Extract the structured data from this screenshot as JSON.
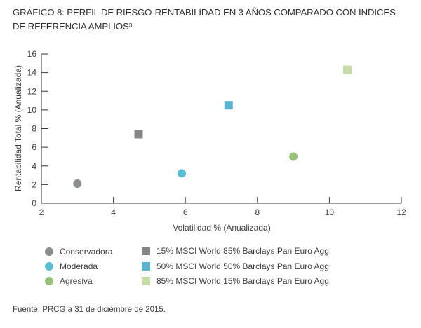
{
  "title_line1": "GRÁFICO 8: PERFIL DE RIESGO-RENTABILIDAD EN 3 AÑOS COMPARADO CON ÍNDICES",
  "title_line2": "DE REFERENCIA AMPLIOS³",
  "source": "Fuente: PRCG a 31 de diciembre de 2015.",
  "chart_data": {
    "type": "scatter",
    "xlabel": "Volatilidad % (Anualizada)",
    "ylabel": "Rentabilidad Total % (Anualizada)",
    "xlim": [
      2,
      12
    ],
    "ylim": [
      0,
      16
    ],
    "xticks": [
      2,
      4,
      6,
      8,
      10,
      12
    ],
    "yticks": [
      0,
      2,
      4,
      6,
      8,
      10,
      12,
      14,
      16
    ],
    "grid": false,
    "legend_position": "bottom",
    "series": [
      {
        "name": "Conservadora",
        "marker": "circle",
        "color": "#8a8d91",
        "points": [
          [
            3.0,
            2.1
          ]
        ]
      },
      {
        "name": "Moderada",
        "marker": "circle",
        "color": "#5bbdd4",
        "points": [
          [
            5.9,
            3.2
          ]
        ]
      },
      {
        "name": "Agresiva",
        "marker": "circle",
        "color": "#98c17a",
        "points": [
          [
            9.0,
            5.0
          ]
        ]
      },
      {
        "name": "15% MSCI World 85% Barclays Pan Euro Agg",
        "marker": "square",
        "color": "#85878b",
        "points": [
          [
            4.7,
            7.4
          ]
        ]
      },
      {
        "name": "50% MSCI World 50% Barclays Pan Euro Agg",
        "marker": "square",
        "color": "#5bb3d0",
        "points": [
          [
            7.2,
            10.5
          ]
        ]
      },
      {
        "name": "85% MSCI World 15% Barclays Pan Euro Agg",
        "marker": "square",
        "color": "#c8dca8",
        "points": [
          [
            10.5,
            14.3
          ]
        ]
      }
    ]
  }
}
